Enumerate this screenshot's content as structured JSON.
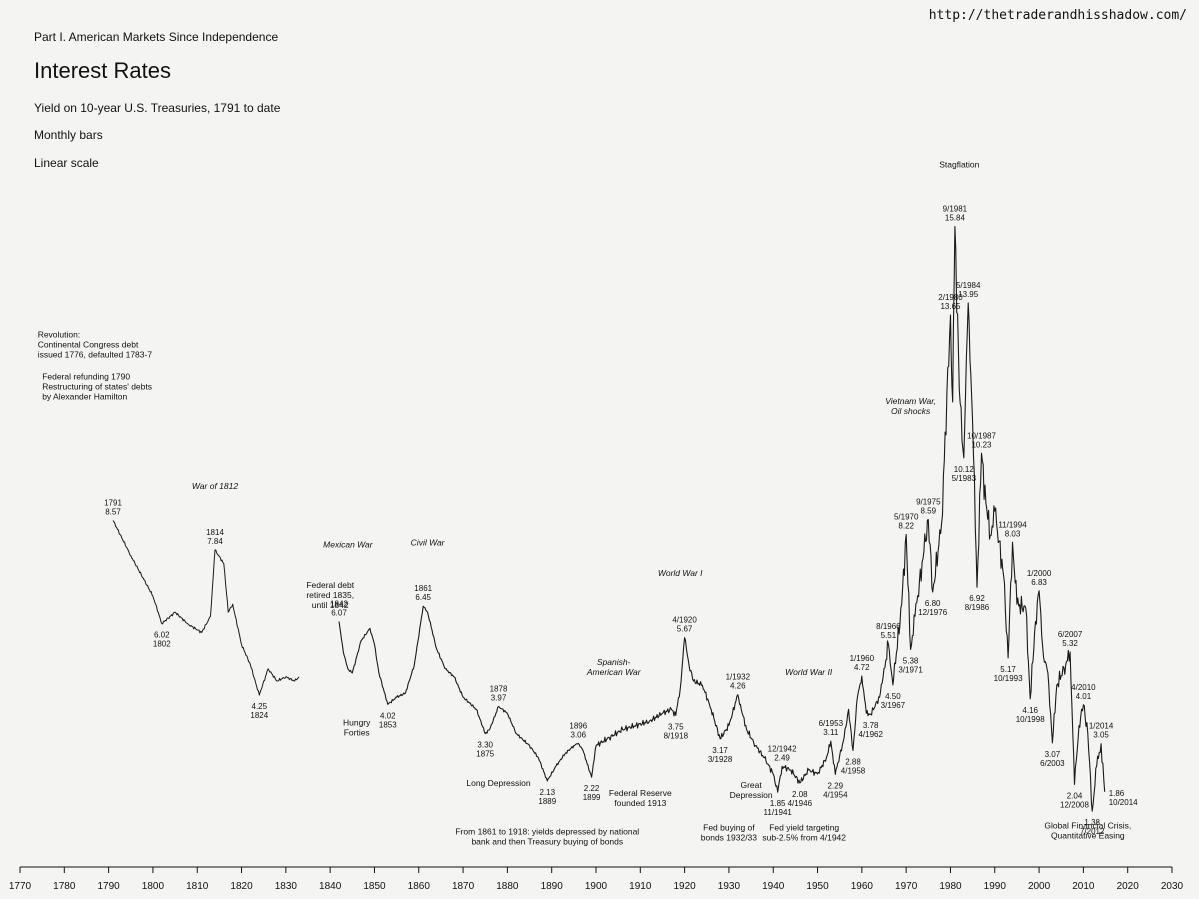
{
  "header": {
    "series_label": "Part I. American Markets Since Independence",
    "title": "Interest Rates",
    "subtitle": "Yield on 10-year U.S. Treasuries, 1791 to date",
    "bars_note": "Monthly bars",
    "scale_note": "Linear scale",
    "source_url": "http://thetraderandhisshadow.com/"
  },
  "colors": {
    "background": "#f4f4f2",
    "line": "#1a1a1a",
    "axis": "#111111"
  },
  "chart_data": {
    "type": "line",
    "title": "Interest Rates",
    "subtitle": "Yield on 10-year U.S. Treasuries, 1791 to date",
    "xlabel": "",
    "ylabel": "",
    "xlim": [
      1770,
      2030
    ],
    "ylim": [
      0,
      16
    ],
    "scale": "linear",
    "grid": false,
    "y_axis_shown": false,
    "x_ticks": [
      1770,
      1780,
      1790,
      1800,
      1810,
      1820,
      1830,
      1840,
      1850,
      1860,
      1870,
      1880,
      1890,
      1900,
      1910,
      1920,
      1930,
      1940,
      1950,
      1960,
      1970,
      1980,
      1990,
      2000,
      2010,
      2020,
      2030
    ],
    "series": [
      {
        "points": [
          [
            1791,
            8.57
          ],
          [
            1795,
            7.7
          ],
          [
            1798,
            7.1
          ],
          [
            1800,
            6.7
          ],
          [
            1802,
            6.02
          ],
          [
            1805,
            6.3
          ],
          [
            1808,
            6.0
          ],
          [
            1811,
            5.8
          ],
          [
            1813,
            6.2
          ],
          [
            1814,
            7.84
          ],
          [
            1816,
            7.5
          ],
          [
            1817,
            6.3
          ],
          [
            1818,
            6.5
          ],
          [
            1820,
            5.5
          ],
          [
            1822,
            5.0
          ],
          [
            1824,
            4.25
          ],
          [
            1826,
            4.9
          ],
          [
            1828,
            4.6
          ],
          [
            1830,
            4.7
          ],
          [
            1832,
            4.6
          ],
          [
            1833,
            4.7
          ]
        ]
      },
      {
        "points": [
          [
            1842,
            6.07
          ],
          [
            1843,
            5.3
          ],
          [
            1844,
            4.9
          ],
          [
            1845,
            4.8
          ],
          [
            1847,
            5.6
          ],
          [
            1849,
            5.9
          ],
          [
            1850,
            5.5
          ],
          [
            1851,
            4.8
          ],
          [
            1853,
            4.02
          ],
          [
            1855,
            4.2
          ],
          [
            1857,
            4.3
          ],
          [
            1859,
            5.0
          ],
          [
            1861,
            6.45
          ],
          [
            1862,
            6.3
          ],
          [
            1864,
            5.4
          ],
          [
            1866,
            4.9
          ],
          [
            1868,
            4.7
          ],
          [
            1870,
            4.2
          ],
          [
            1873,
            3.9
          ],
          [
            1875,
            3.3
          ],
          [
            1876,
            3.4
          ],
          [
            1878,
            3.97
          ],
          [
            1880,
            3.8
          ],
          [
            1882,
            3.3
          ],
          [
            1885,
            3.0
          ],
          [
            1887,
            2.7
          ],
          [
            1889,
            2.13
          ],
          [
            1891,
            2.5
          ],
          [
            1893,
            2.8
          ],
          [
            1895,
            3.0
          ],
          [
            1896,
            3.06
          ],
          [
            1897,
            2.9
          ],
          [
            1899,
            2.22
          ],
          [
            1900,
            3.0
          ],
          [
            1903,
            3.2
          ],
          [
            1906,
            3.4
          ],
          [
            1909,
            3.5
          ],
          [
            1912,
            3.6
          ],
          [
            1915,
            3.8
          ],
          [
            1917,
            3.9
          ],
          [
            1918,
            3.75
          ],
          [
            1919,
            4.4
          ],
          [
            1920,
            5.67
          ],
          [
            1921,
            5.0
          ],
          [
            1922,
            4.6
          ],
          [
            1924,
            4.5
          ],
          [
            1926,
            3.9
          ],
          [
            1928,
            3.17
          ],
          [
            1930,
            3.5
          ],
          [
            1932,
            4.26
          ],
          [
            1933,
            3.8
          ],
          [
            1934,
            3.4
          ],
          [
            1936,
            3.0
          ],
          [
            1938,
            2.7
          ],
          [
            1940,
            2.3
          ],
          [
            1941,
            1.85
          ],
          [
            1942,
            2.49
          ],
          [
            1944,
            2.4
          ],
          [
            1946,
            2.08
          ],
          [
            1948,
            2.4
          ],
          [
            1950,
            2.3
          ],
          [
            1952,
            2.7
          ],
          [
            1953,
            3.11
          ],
          [
            1954,
            2.29
          ],
          [
            1956,
            3.2
          ],
          [
            1957,
            3.9
          ],
          [
            1958,
            2.88
          ],
          [
            1959,
            4.2
          ],
          [
            1960,
            4.72
          ],
          [
            1961,
            3.8
          ],
          [
            1962,
            3.78
          ],
          [
            1964,
            4.2
          ],
          [
            1966,
            5.51
          ],
          [
            1967,
            4.5
          ],
          [
            1969,
            6.5
          ],
          [
            1970,
            8.22
          ],
          [
            1971,
            5.38
          ],
          [
            1972,
            6.2
          ],
          [
            1974,
            7.8
          ],
          [
            1975,
            8.59
          ],
          [
            1976,
            6.8
          ],
          [
            1978,
            8.5
          ],
          [
            1980,
            13.65
          ],
          [
            1980.5,
            11.5
          ],
          [
            1981,
            15.84
          ],
          [
            1982,
            11.8
          ],
          [
            1983,
            10.12
          ],
          [
            1984,
            13.95
          ],
          [
            1985,
            11.0
          ],
          [
            1986,
            6.92
          ],
          [
            1987,
            10.23
          ],
          [
            1988,
            9.0
          ],
          [
            1989,
            8.2
          ],
          [
            1990,
            8.8
          ],
          [
            1992,
            7.2
          ],
          [
            1993,
            5.17
          ],
          [
            1994,
            8.03
          ],
          [
            1995,
            6.5
          ],
          [
            1997,
            6.4
          ],
          [
            1998,
            4.16
          ],
          [
            1999,
            5.8
          ],
          [
            2000,
            6.83
          ],
          [
            2001,
            5.2
          ],
          [
            2002,
            4.8
          ],
          [
            2003,
            3.07
          ],
          [
            2004,
            4.5
          ],
          [
            2006,
            5.0
          ],
          [
            2007,
            5.32
          ],
          [
            2008,
            2.04
          ],
          [
            2009,
            3.5
          ],
          [
            2010,
            4.01
          ],
          [
            2011,
            3.3
          ],
          [
            2012,
            1.38
          ],
          [
            2013,
            2.5
          ],
          [
            2014,
            3.05
          ],
          [
            2014.8,
            1.86
          ]
        ]
      }
    ],
    "annotations": [
      {
        "x": 1791,
        "y": 8.57,
        "lines": [
          "1791",
          "8.57"
        ]
      },
      {
        "x": 1802,
        "y": 6.02,
        "lines": [
          "6.02",
          "1802"
        ],
        "pos": "below"
      },
      {
        "x": 1814,
        "y": 7.84,
        "lines": [
          "1814",
          "7.84"
        ]
      },
      {
        "x": 1824,
        "y": 4.25,
        "lines": [
          "4.25",
          "1824"
        ],
        "pos": "below"
      },
      {
        "x": 1842,
        "y": 6.07,
        "lines": [
          "1842",
          "6.07"
        ]
      },
      {
        "x": 1853,
        "y": 4.02,
        "lines": [
          "4.02",
          "1853"
        ],
        "pos": "below"
      },
      {
        "x": 1861,
        "y": 6.45,
        "lines": [
          "1861",
          "6.45"
        ]
      },
      {
        "x": 1875,
        "y": 3.3,
        "lines": [
          "3.30",
          "1875"
        ],
        "pos": "below"
      },
      {
        "x": 1878,
        "y": 3.97,
        "lines": [
          "1878",
          "3.97"
        ]
      },
      {
        "x": 1889,
        "y": 2.13,
        "lines": [
          "2.13",
          "1889"
        ],
        "pos": "below"
      },
      {
        "x": 1896,
        "y": 3.06,
        "lines": [
          "1896",
          "3.06"
        ]
      },
      {
        "x": 1899,
        "y": 2.22,
        "lines": [
          "2.22",
          "1899"
        ],
        "pos": "below"
      },
      {
        "x": 1918,
        "y": 3.75,
        "lines": [
          "3.75",
          "8/1918"
        ],
        "pos": "below"
      },
      {
        "x": 1920,
        "y": 5.67,
        "lines": [
          "4/1920",
          "5.67"
        ]
      },
      {
        "x": 1928,
        "y": 3.17,
        "lines": [
          "3.17",
          "3/1928"
        ],
        "pos": "below"
      },
      {
        "x": 1932,
        "y": 4.26,
        "lines": [
          "1/1932",
          "4.26"
        ]
      },
      {
        "x": 1941,
        "y": 1.85,
        "lines": [
          "1.85",
          "11/1941"
        ],
        "pos": "below"
      },
      {
        "x": 1942,
        "y": 2.49,
        "lines": [
          "12/1942",
          "2.49"
        ]
      },
      {
        "x": 1946,
        "y": 2.08,
        "lines": [
          "2.08",
          "4/1946"
        ],
        "pos": "below"
      },
      {
        "x": 1953,
        "y": 3.11,
        "lines": [
          "6/1953",
          "3.11"
        ]
      },
      {
        "x": 1954,
        "y": 2.29,
        "lines": [
          "2.29",
          "4/1954"
        ],
        "pos": "below"
      },
      {
        "x": 1958,
        "y": 2.88,
        "lines": [
          "2.88",
          "4/1958"
        ],
        "pos": "below"
      },
      {
        "x": 1960,
        "y": 4.72,
        "lines": [
          "1/1960",
          "4.72"
        ]
      },
      {
        "x": 1962,
        "y": 3.78,
        "lines": [
          "3.78",
          "4/1962"
        ],
        "pos": "below"
      },
      {
        "x": 1966,
        "y": 5.51,
        "lines": [
          "8/1966",
          "5.51"
        ]
      },
      {
        "x": 1967,
        "y": 4.5,
        "lines": [
          "4.50",
          "3/1967"
        ],
        "pos": "below"
      },
      {
        "x": 1970,
        "y": 8.22,
        "lines": [
          "5/1970",
          "8.22"
        ]
      },
      {
        "x": 1971,
        "y": 5.38,
        "lines": [
          "5.38",
          "3/1971"
        ],
        "pos": "below"
      },
      {
        "x": 1975,
        "y": 8.59,
        "lines": [
          "9/1975",
          "8.59"
        ]
      },
      {
        "x": 1976,
        "y": 6.8,
        "lines": [
          "6.80",
          "12/1976"
        ],
        "pos": "below"
      },
      {
        "x": 1980,
        "y": 13.65,
        "lines": [
          "2/1980",
          "13.65"
        ]
      },
      {
        "x": 1981,
        "y": 15.84,
        "lines": [
          "9/1981",
          "15.84"
        ]
      },
      {
        "x": 1983,
        "y": 10.12,
        "lines": [
          "10.12",
          "5/1983"
        ],
        "pos": "below"
      },
      {
        "x": 1984,
        "y": 13.95,
        "lines": [
          "5/1984",
          "13.95"
        ]
      },
      {
        "x": 1986,
        "y": 6.92,
        "lines": [
          "6.92",
          "8/1986"
        ],
        "pos": "below"
      },
      {
        "x": 1987,
        "y": 10.23,
        "lines": [
          "10/1987",
          "10.23"
        ]
      },
      {
        "x": 1993,
        "y": 5.17,
        "lines": [
          "5.17",
          "10/1993"
        ],
        "pos": "below"
      },
      {
        "x": 1994,
        "y": 8.03,
        "lines": [
          "11/1994",
          "8.03"
        ]
      },
      {
        "x": 1998,
        "y": 4.16,
        "lines": [
          "4.16",
          "10/1998"
        ],
        "pos": "below"
      },
      {
        "x": 2000,
        "y": 6.83,
        "lines": [
          "1/2000",
          "6.83"
        ]
      },
      {
        "x": 2003,
        "y": 3.07,
        "lines": [
          "3.07",
          "6/2003"
        ],
        "pos": "below"
      },
      {
        "x": 2007,
        "y": 5.32,
        "lines": [
          "6/2007",
          "5.32"
        ]
      },
      {
        "x": 2008,
        "y": 2.04,
        "lines": [
          "2.04",
          "12/2008"
        ],
        "pos": "below"
      },
      {
        "x": 2010,
        "y": 4.01,
        "lines": [
          "4/2010",
          "4.01"
        ]
      },
      {
        "x": 2012,
        "y": 1.38,
        "lines": [
          "1.38",
          "7/2012"
        ],
        "pos": "below"
      },
      {
        "x": 2014,
        "y": 3.05,
        "lines": [
          "1/2014",
          "3.05"
        ]
      },
      {
        "x": 2014.8,
        "y": 1.86,
        "lines": [
          "1.86",
          "10/2014"
        ],
        "pos": "right"
      }
    ],
    "events": [
      {
        "x": 1774,
        "y": 13.1,
        "lines": [
          "Revolution:",
          "Continental Congress debt",
          "issued 1776, defaulted 1783-7"
        ],
        "italic": false,
        "align": "start"
      },
      {
        "x": 1775,
        "y": 12.05,
        "lines": [
          "Federal refunding 1790",
          "Restructuring of states' debts",
          "by Alexander Hamilton"
        ],
        "italic": false,
        "align": "start"
      },
      {
        "x": 1814,
        "y": 9.35,
        "lines": [
          "War of 1812"
        ],
        "italic": true,
        "align": "middle"
      },
      {
        "x": 1840,
        "y": 6.9,
        "lines": [
          "Federal debt",
          "retired 1835,",
          "until 1842"
        ],
        "italic": false,
        "align": "middle"
      },
      {
        "x": 1844,
        "y": 7.9,
        "lines": [
          "Mexican War"
        ],
        "italic": true,
        "align": "middle"
      },
      {
        "x": 1862,
        "y": 7.95,
        "lines": [
          "Civil War"
        ],
        "italic": true,
        "align": "middle"
      },
      {
        "x": 1846,
        "y": 3.5,
        "lines": [
          "Hungry",
          "Forties"
        ],
        "italic": false,
        "align": "middle"
      },
      {
        "x": 1878,
        "y": 2.0,
        "lines": [
          "Long Depression"
        ],
        "italic": false,
        "align": "middle"
      },
      {
        "x": 1904,
        "y": 5.0,
        "lines": [
          "Spanish-",
          "American War"
        ],
        "italic": true,
        "align": "middle"
      },
      {
        "x": 1919,
        "y": 7.2,
        "lines": [
          "World War I"
        ],
        "italic": true,
        "align": "middle"
      },
      {
        "x": 1910,
        "y": 1.75,
        "lines": [
          "Federal Reserve",
          "founded 1913"
        ],
        "italic": false,
        "align": "middle"
      },
      {
        "x": 1935,
        "y": 1.95,
        "lines": [
          "Great",
          "Depression"
        ],
        "italic": false,
        "align": "middle"
      },
      {
        "x": 1948,
        "y": 4.75,
        "lines": [
          "World War II"
        ],
        "italic": true,
        "align": "middle"
      },
      {
        "x": 1930,
        "y": 0.9,
        "lines": [
          "Fed buying of",
          "bonds 1932/33"
        ],
        "italic": false,
        "align": "middle"
      },
      {
        "x": 1947,
        "y": 0.9,
        "lines": [
          "Fed yield targeting",
          "sub-2.5% from 4/1942"
        ],
        "italic": false,
        "align": "middle"
      },
      {
        "x": 1889,
        "y": 0.8,
        "lines": [
          "From 1861 to 1918: yields depressed by national",
          "bank and then Treasury buying of bonds"
        ],
        "italic": false,
        "align": "middle"
      },
      {
        "x": 1971,
        "y": 11.45,
        "lines": [
          "Vietnam War,",
          "Oil shocks"
        ],
        "italic": true,
        "align": "middle"
      },
      {
        "x": 1982,
        "y": 17.3,
        "lines": [
          "Stagflation"
        ],
        "italic": false,
        "align": "middle"
      },
      {
        "x": 2011,
        "y": 0.95,
        "lines": [
          "Global Financial Crisis,",
          "Quantitative Easing"
        ],
        "italic": false,
        "align": "middle"
      }
    ]
  }
}
